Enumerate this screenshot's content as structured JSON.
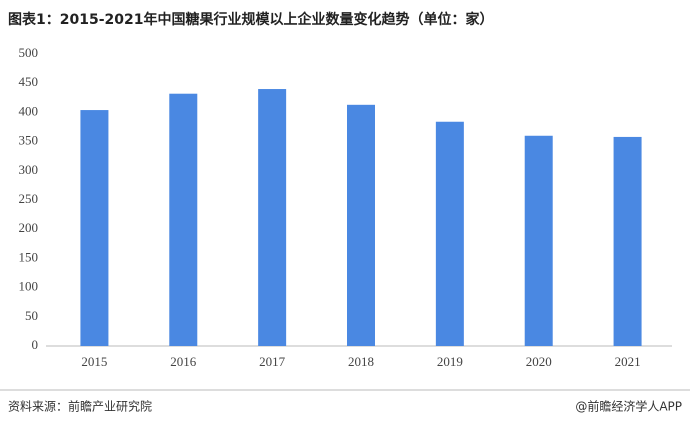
{
  "chart_data": {
    "type": "bar",
    "title": "图表1：2015-2021年中国糖果行业规模以上企业数量变化趋势（单位：家）",
    "categories": [
      "2015",
      "2016",
      "2017",
      "2018",
      "2019",
      "2020",
      "2021"
    ],
    "values": [
      404,
      432,
      440,
      413,
      384,
      360,
      358
    ],
    "color": "#4a88e2",
    "ylim": [
      0,
      500
    ],
    "yticks": [
      0,
      50,
      100,
      150,
      200,
      250,
      300,
      350,
      400,
      450,
      500
    ],
    "grid": false,
    "source": "资料来源：前瞻产业研究院",
    "credit": "@前瞻经济学人APP"
  }
}
